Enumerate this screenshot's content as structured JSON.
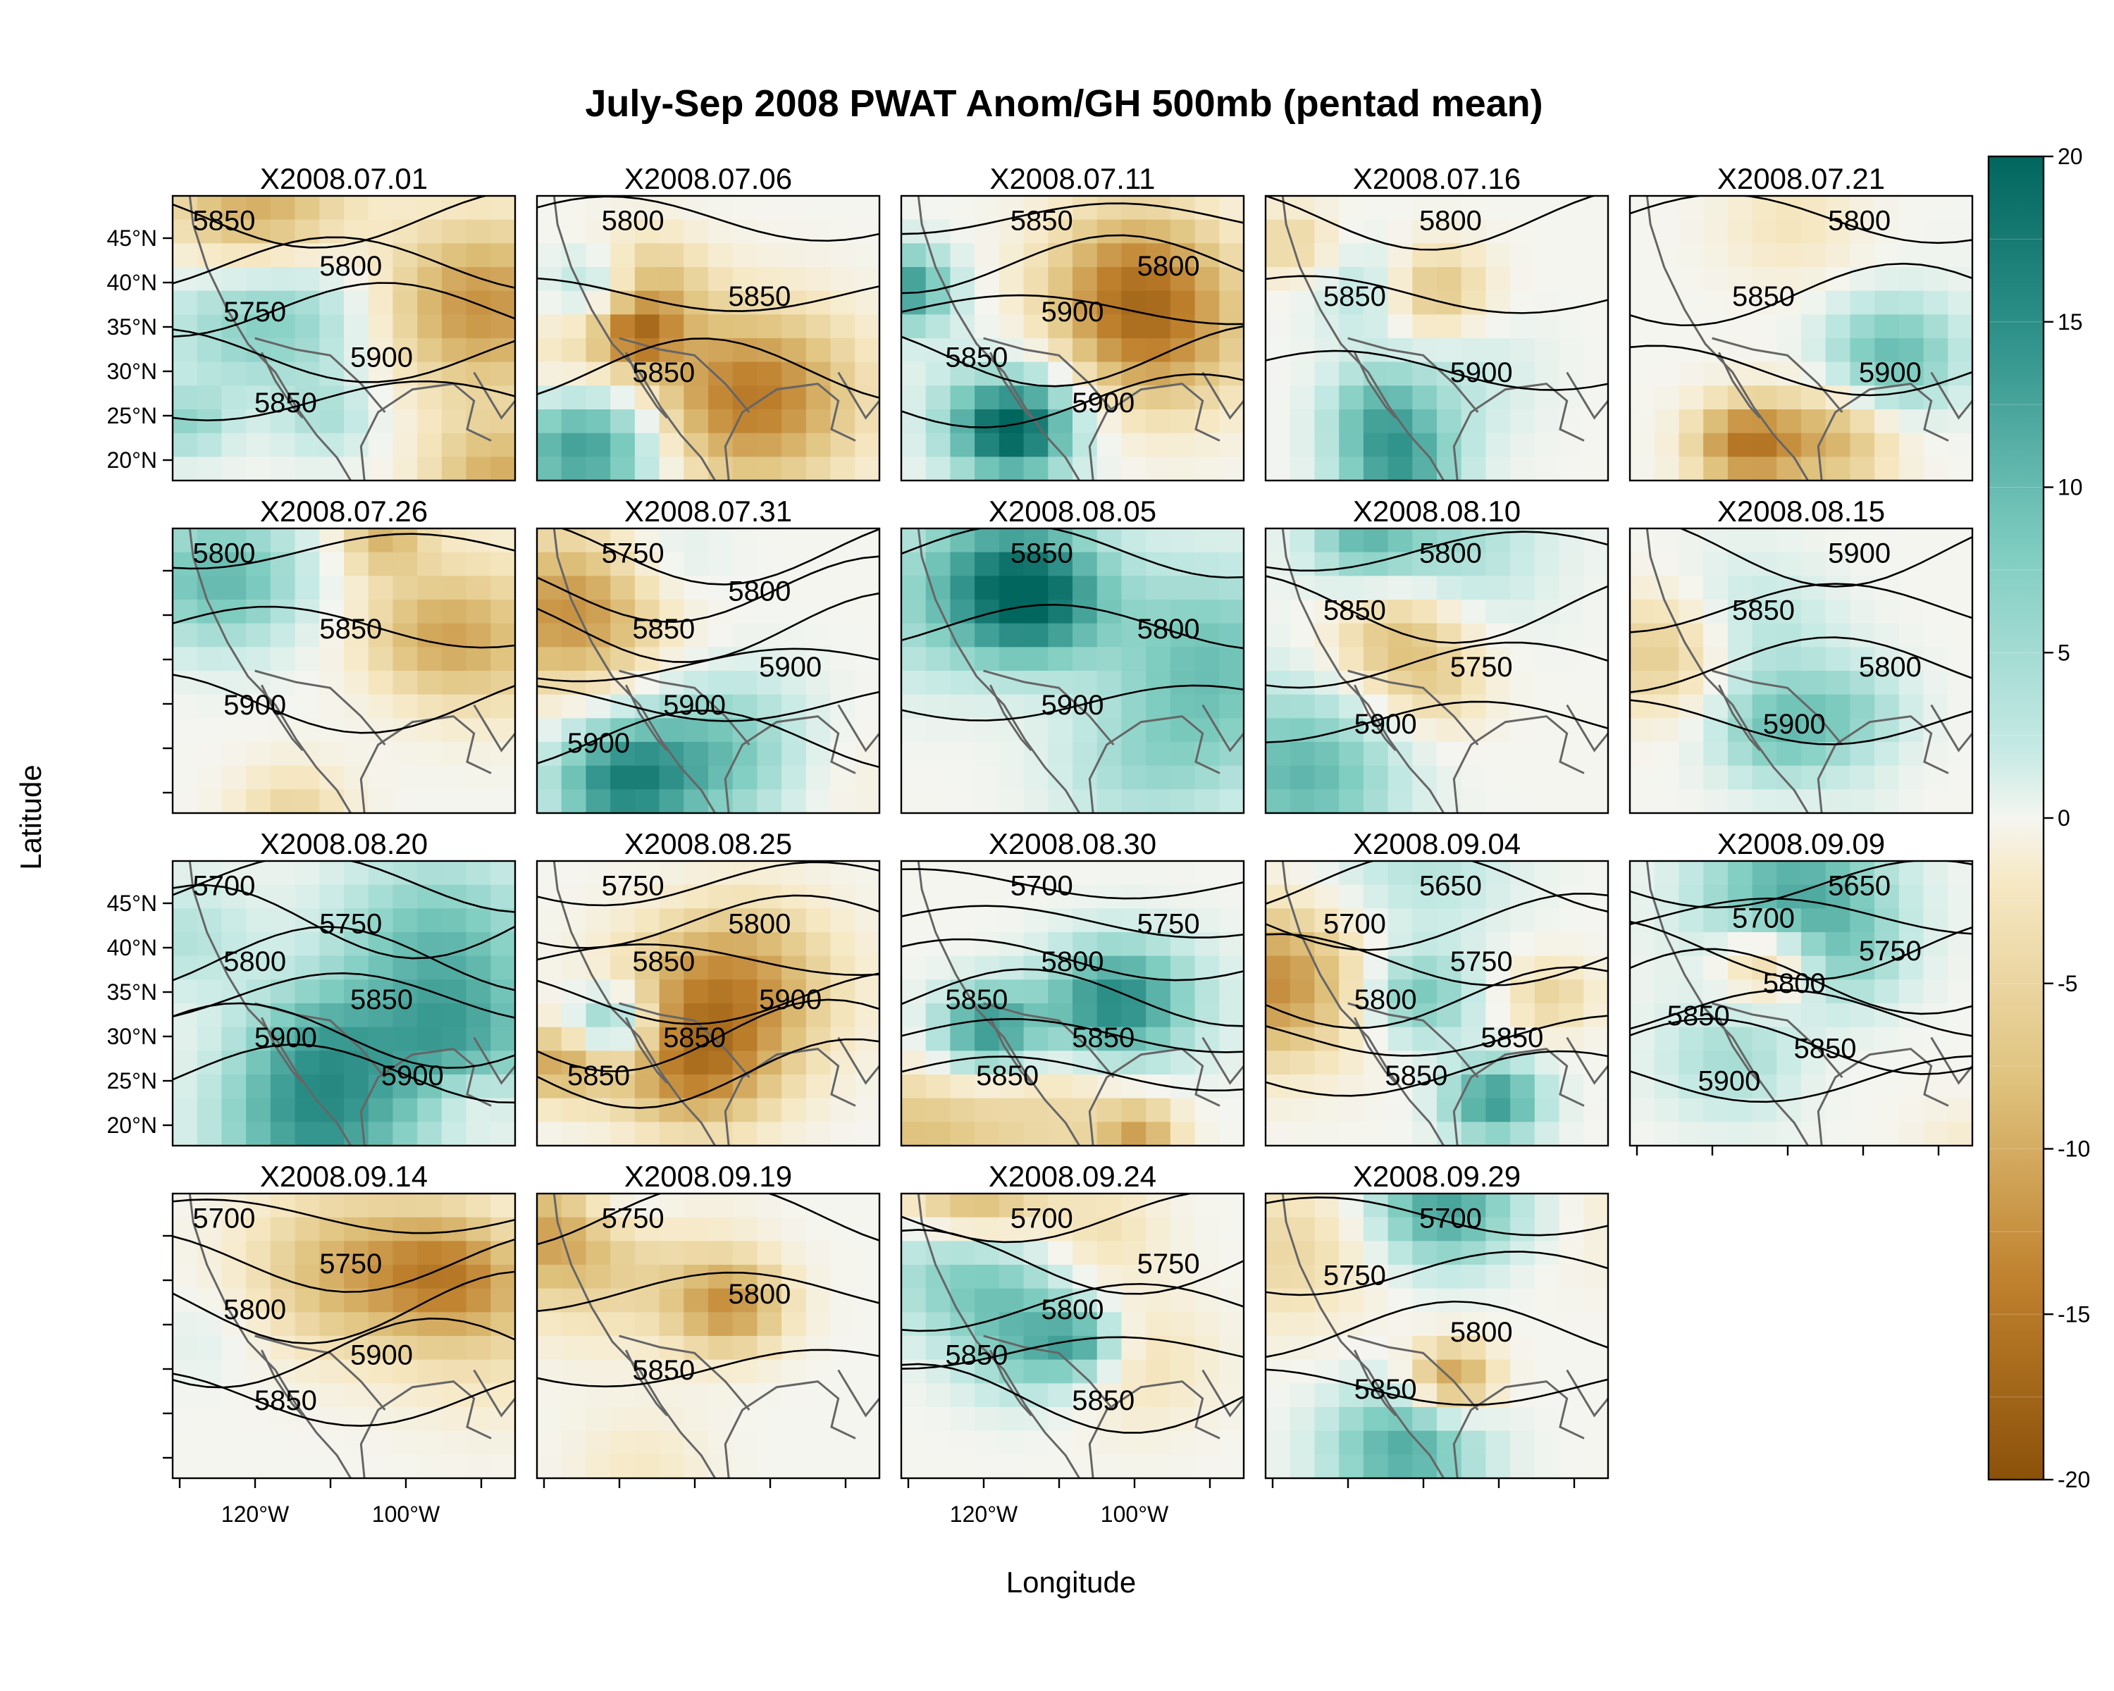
{
  "title": "July-Sep 2008 PWAT Anom/GH 500mb (pentad mean)",
  "chart_data": {
    "type": "heatmap",
    "subtype": "small-multiple filled-contour maps with contour overlay",
    "title": "July-Sep 2008 PWAT Anom/GH 500mb (pentad mean)",
    "xlabel": "Longitude",
    "ylabel": "Latitude",
    "x_ticks": [
      "120°W",
      "100°W"
    ],
    "y_ticks": [
      "45°N",
      "40°N",
      "35°N",
      "30°N",
      "25°N",
      "20°N"
    ],
    "colorbar": {
      "range": [
        -20,
        20
      ],
      "ticks": [
        "20",
        "15",
        "10",
        "5",
        "0",
        "-5",
        "-10",
        "-15",
        "-20"
      ],
      "low_color": "#8c510a",
      "mid_color": "#f5f5f0",
      "high_color": "#01665e"
    },
    "panels": [
      {
        "label": "X2008.07.01",
        "contours": [
          "5850",
          "5800",
          "5750",
          "5900",
          "5850"
        ]
      },
      {
        "label": "X2008.07.06",
        "contours": [
          "5800",
          "5850",
          "5850"
        ]
      },
      {
        "label": "X2008.07.11",
        "contours": [
          "5850",
          "5800",
          "5900",
          "5850",
          "5900"
        ]
      },
      {
        "label": "X2008.07.16",
        "contours": [
          "5800",
          "5850",
          "5900"
        ]
      },
      {
        "label": "X2008.07.21",
        "contours": [
          "5800",
          "5850",
          "5900"
        ]
      },
      {
        "label": "X2008.07.26",
        "contours": [
          "5800",
          "5850",
          "5900"
        ]
      },
      {
        "label": "X2008.07.31",
        "contours": [
          "5750",
          "5800",
          "5850",
          "5900",
          "5900",
          "5900"
        ]
      },
      {
        "label": "X2008.08.05",
        "contours": [
          "5850",
          "5800",
          "5900"
        ]
      },
      {
        "label": "X2008.08.10",
        "contours": [
          "5800",
          "5850",
          "5750",
          "5900"
        ]
      },
      {
        "label": "X2008.08.15",
        "contours": [
          "5900",
          "5850",
          "5800",
          "5900"
        ]
      },
      {
        "label": "X2008.08.20",
        "contours": [
          "5700",
          "5750",
          "5800",
          "5850",
          "5900",
          "5900"
        ]
      },
      {
        "label": "X2008.08.25",
        "contours": [
          "5750",
          "5800",
          "5850",
          "5900",
          "5850",
          "5850"
        ]
      },
      {
        "label": "X2008.08.30",
        "contours": [
          "5700",
          "5750",
          "5800",
          "5850",
          "5850",
          "5850"
        ]
      },
      {
        "label": "X2008.09.04",
        "contours": [
          "5650",
          "5700",
          "5750",
          "5800",
          "5850",
          "5850"
        ]
      },
      {
        "label": "X2008.09.09",
        "contours": [
          "5650",
          "5700",
          "5750",
          "5800",
          "5850",
          "5850",
          "5900"
        ]
      },
      {
        "label": "X2008.09.14",
        "contours": [
          "5700",
          "5750",
          "5800",
          "5900",
          "5850"
        ]
      },
      {
        "label": "X2008.09.19",
        "contours": [
          "5750",
          "5800",
          "5850"
        ]
      },
      {
        "label": "X2008.09.24",
        "contours": [
          "5700",
          "5750",
          "5800",
          "5850",
          "5850"
        ]
      },
      {
        "label": "X2008.09.29",
        "contours": [
          "5700",
          "5750",
          "5800",
          "5850"
        ]
      }
    ]
  }
}
